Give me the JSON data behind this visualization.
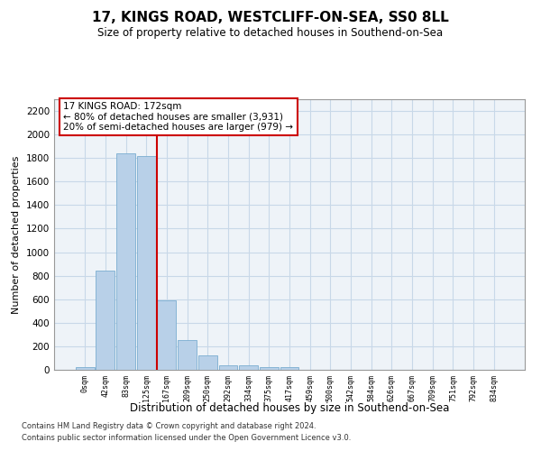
{
  "title": "17, KINGS ROAD, WESTCLIFF-ON-SEA, SS0 8LL",
  "subtitle": "Size of property relative to detached houses in Southend-on-Sea",
  "xlabel": "Distribution of detached houses by size in Southend-on-Sea",
  "ylabel": "Number of detached properties",
  "bar_color": "#b8d0e8",
  "bar_edge_color": "#7aadd0",
  "grid_color": "#c8d8e8",
  "background_color": "#eef3f8",
  "annotation_box_text": "17 KINGS ROAD: 172sqm\n← 80% of detached houses are smaller (3,931)\n20% of semi-detached houses are larger (979) →",
  "annotation_box_color": "#ffffff",
  "annotation_box_edge": "#cc0000",
  "vline_color": "#cc0000",
  "footer1": "Contains HM Land Registry data © Crown copyright and database right 2024.",
  "footer2": "Contains public sector information licensed under the Open Government Licence v3.0.",
  "categories": [
    "0sqm",
    "42sqm",
    "83sqm",
    "125sqm",
    "167sqm",
    "209sqm",
    "250sqm",
    "292sqm",
    "334sqm",
    "375sqm",
    "417sqm",
    "459sqm",
    "500sqm",
    "542sqm",
    "584sqm",
    "626sqm",
    "667sqm",
    "709sqm",
    "751sqm",
    "792sqm",
    "834sqm"
  ],
  "values": [
    20,
    840,
    1840,
    1820,
    590,
    255,
    120,
    35,
    35,
    25,
    20,
    0,
    0,
    0,
    0,
    0,
    0,
    0,
    0,
    0,
    0
  ],
  "vline_x": 3.5,
  "ylim": [
    0,
    2300
  ],
  "yticks": [
    0,
    200,
    400,
    600,
    800,
    1000,
    1200,
    1400,
    1600,
    1800,
    2000,
    2200
  ]
}
